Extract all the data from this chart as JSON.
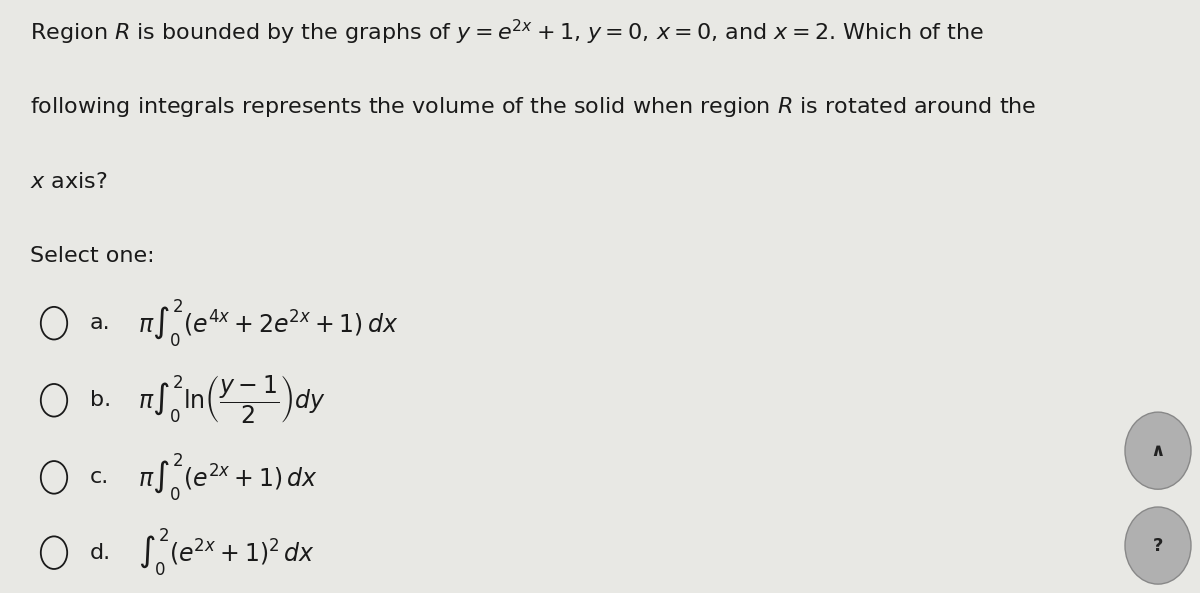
{
  "background_color": "#e8e8e4",
  "title_line1": "Region $R$ is bounded by the graphs of $y = e^{2x} + 1$, $y = 0$, $x = 0$, and $x = 2$. Which of the",
  "title_line2": "following integrals represents the volume of the solid when region $R$ is rotated around the",
  "title_line3": "$x$ axis?",
  "select_one": "Select one:",
  "labels": [
    "a.",
    "b.",
    "c.",
    "d."
  ],
  "text_color": "#1a1a1a",
  "font_size_body": 16,
  "font_size_formula": 17
}
